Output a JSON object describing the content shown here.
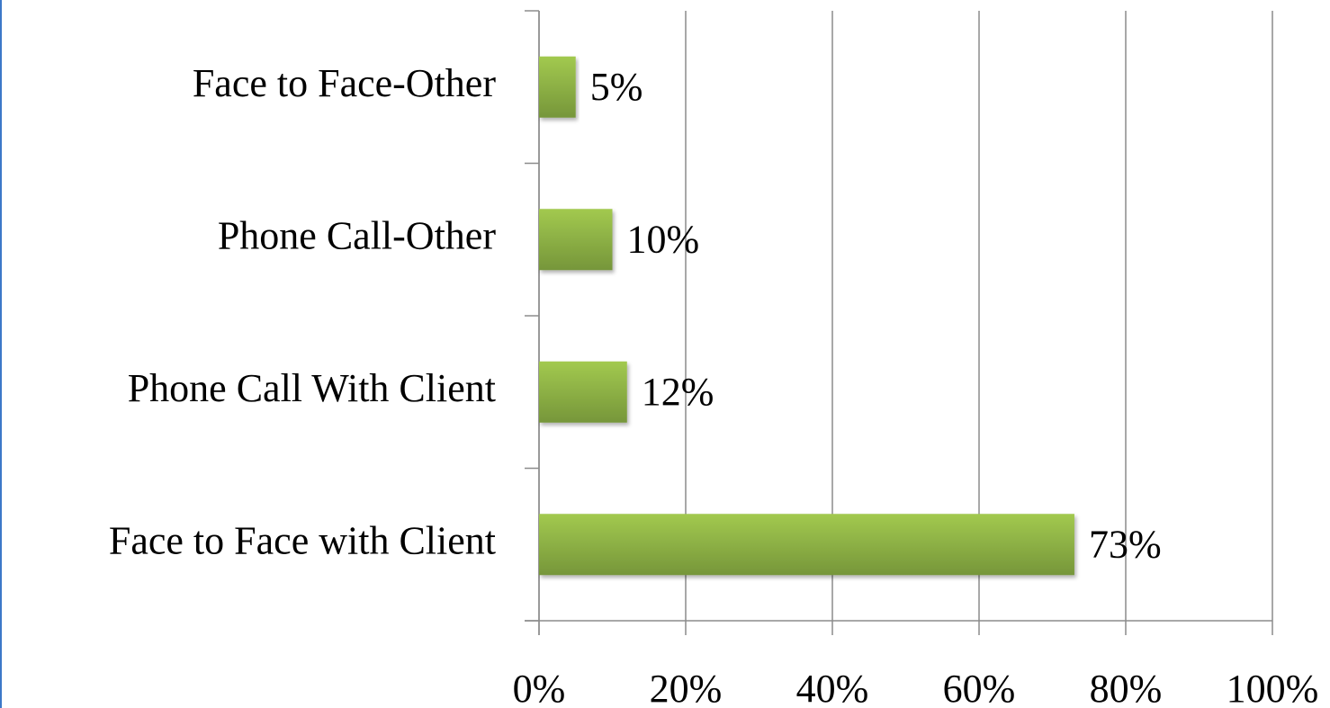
{
  "chart_data": {
    "type": "hbar",
    "categories": [
      "Face to Face-Other",
      "Phone Call-Other",
      "Phone Call With Client",
      "Face to Face with Client"
    ],
    "values": [
      5,
      10,
      12,
      73
    ],
    "value_labels": [
      "5%",
      "10%",
      "12%",
      "73%"
    ],
    "color": "#8db545",
    "xlim": [
      0,
      100
    ],
    "xticks": [
      {
        "value": 0,
        "label": "0%"
      },
      {
        "value": 20,
        "label": "20%"
      },
      {
        "value": 40,
        "label": "40%"
      },
      {
        "value": 60,
        "label": "60%"
      },
      {
        "value": 80,
        "label": "80%"
      },
      {
        "value": 100,
        "label": "100%"
      }
    ],
    "grid": true
  }
}
